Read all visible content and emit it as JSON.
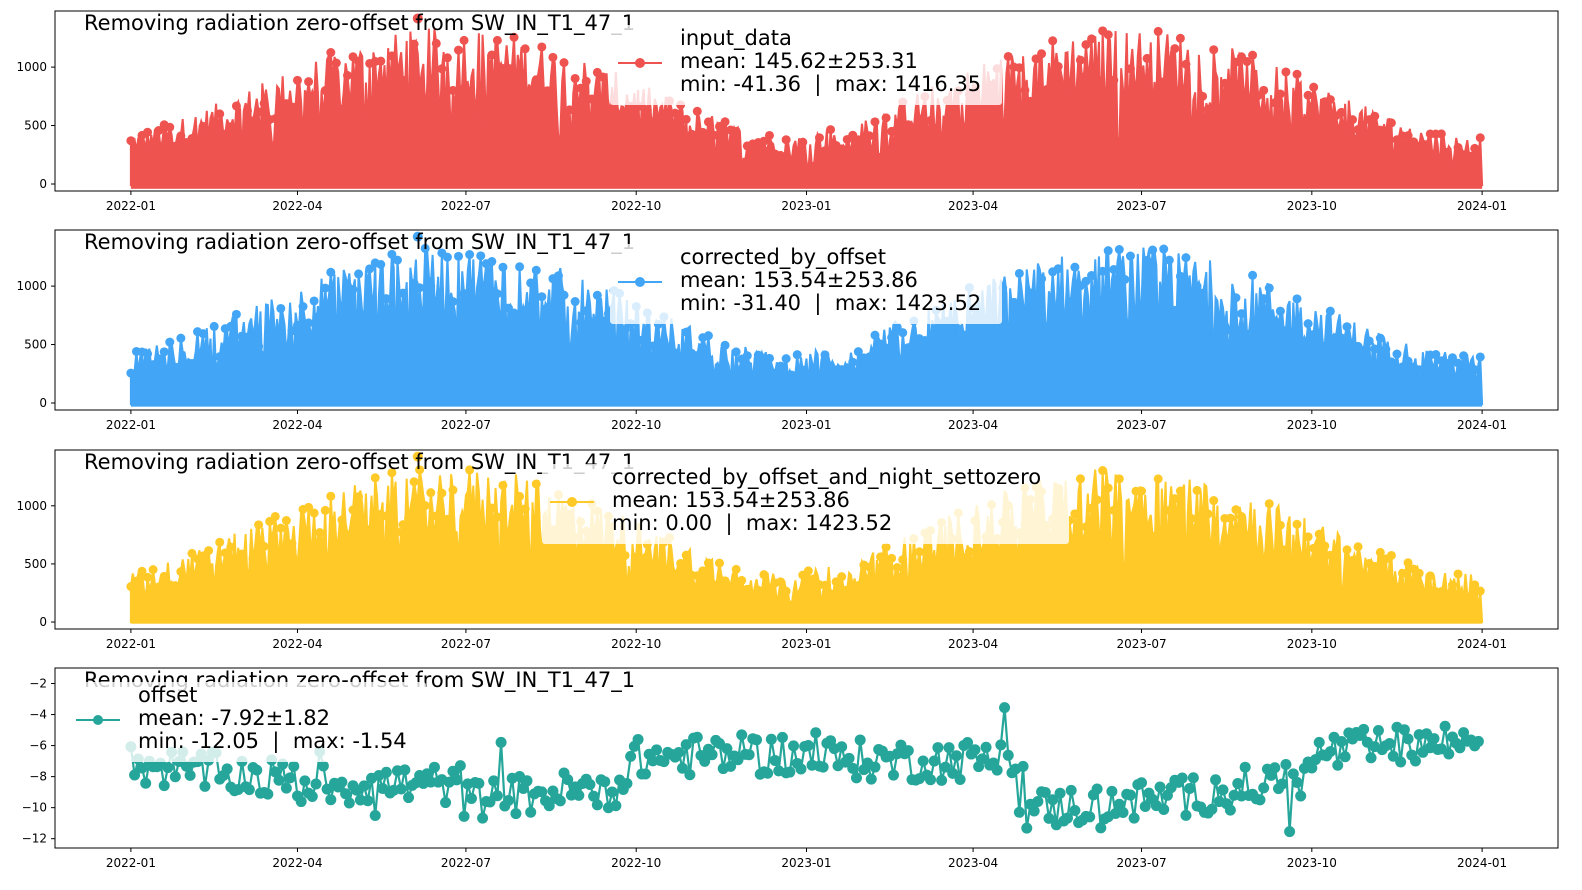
{
  "figure": {
    "background": "#ffffff"
  },
  "chart_data": [
    {
      "type": "line",
      "title": "Removing radiation zero-offset from SW_IN_T1_47_1",
      "series": [
        {
          "name": "input_data",
          "color": "#ef5350"
        }
      ],
      "legend_lines": [
        "input_data",
        "mean: 145.62±253.31",
        "min: -41.36  |  max: 1416.35"
      ],
      "stats": {
        "mean": 145.62,
        "sd": 253.31,
        "min": -41.36,
        "max": 1416.35
      },
      "legend_position": "top-center",
      "xlim": [
        "2021-11-21",
        "2024-02-11"
      ],
      "x_ticks": [
        "2022-01",
        "2022-04",
        "2022-07",
        "2022-10",
        "2023-01",
        "2023-04",
        "2023-07",
        "2023-10",
        "2024-01"
      ],
      "ylim": [
        -60,
        1480
      ],
      "y_ticks": [
        0,
        500,
        1000
      ],
      "grid": false
    },
    {
      "type": "line",
      "title": "Removing radiation zero-offset from SW_IN_T1_47_1",
      "series": [
        {
          "name": "corrected_by_offset",
          "color": "#42a5f5"
        }
      ],
      "legend_lines": [
        "corrected_by_offset",
        "mean: 153.54±253.86",
        "min: -31.40  |  max: 1423.52"
      ],
      "stats": {
        "mean": 153.54,
        "sd": 253.86,
        "min": -31.4,
        "max": 1423.52
      },
      "legend_position": "top-center",
      "xlim": [
        "2021-11-21",
        "2024-02-11"
      ],
      "x_ticks": [
        "2022-01",
        "2022-04",
        "2022-07",
        "2022-10",
        "2023-01",
        "2023-04",
        "2023-07",
        "2023-10",
        "2024-01"
      ],
      "ylim": [
        -60,
        1480
      ],
      "y_ticks": [
        0,
        500,
        1000
      ],
      "grid": false
    },
    {
      "type": "line",
      "title": "Removing radiation zero-offset from SW_IN_T1_47_1",
      "series": [
        {
          "name": "corrected_by_offset_and_night_settozero",
          "color": "#ffca28"
        }
      ],
      "legend_lines": [
        "corrected_by_offset_and_night_settozero",
        "mean: 153.54±253.86",
        "min: 0.00  |  max: 1423.52"
      ],
      "stats": {
        "mean": 153.54,
        "sd": 253.86,
        "min": 0.0,
        "max": 1423.52
      },
      "legend_position": "top-center",
      "xlim": [
        "2021-11-21",
        "2024-02-11"
      ],
      "x_ticks": [
        "2022-01",
        "2022-04",
        "2022-07",
        "2022-10",
        "2023-01",
        "2023-04",
        "2023-07",
        "2023-10",
        "2024-01"
      ],
      "ylim": [
        -60,
        1480
      ],
      "y_ticks": [
        0,
        500,
        1000
      ],
      "grid": false
    },
    {
      "type": "line",
      "title": "Removing radiation zero-offset from SW_IN_T1_47_1",
      "series": [
        {
          "name": "offset",
          "color": "#26a69a"
        }
      ],
      "legend_lines": [
        "offset",
        "mean: -7.92±1.82",
        "min: -12.05  |  max: -1.54"
      ],
      "stats": {
        "mean": -7.92,
        "sd": 1.82,
        "min": -12.05,
        "max": -1.54
      },
      "legend_position": "top-left",
      "xlim": [
        "2021-11-21",
        "2024-02-11"
      ],
      "x_ticks": [
        "2022-01",
        "2022-04",
        "2022-07",
        "2022-10",
        "2023-01",
        "2023-04",
        "2023-07",
        "2023-10",
        "2024-01"
      ],
      "ylim": [
        -12.6,
        -1.0
      ],
      "y_ticks": [
        -12,
        -10,
        -8,
        -6,
        -4,
        -2
      ],
      "grid": false
    }
  ]
}
